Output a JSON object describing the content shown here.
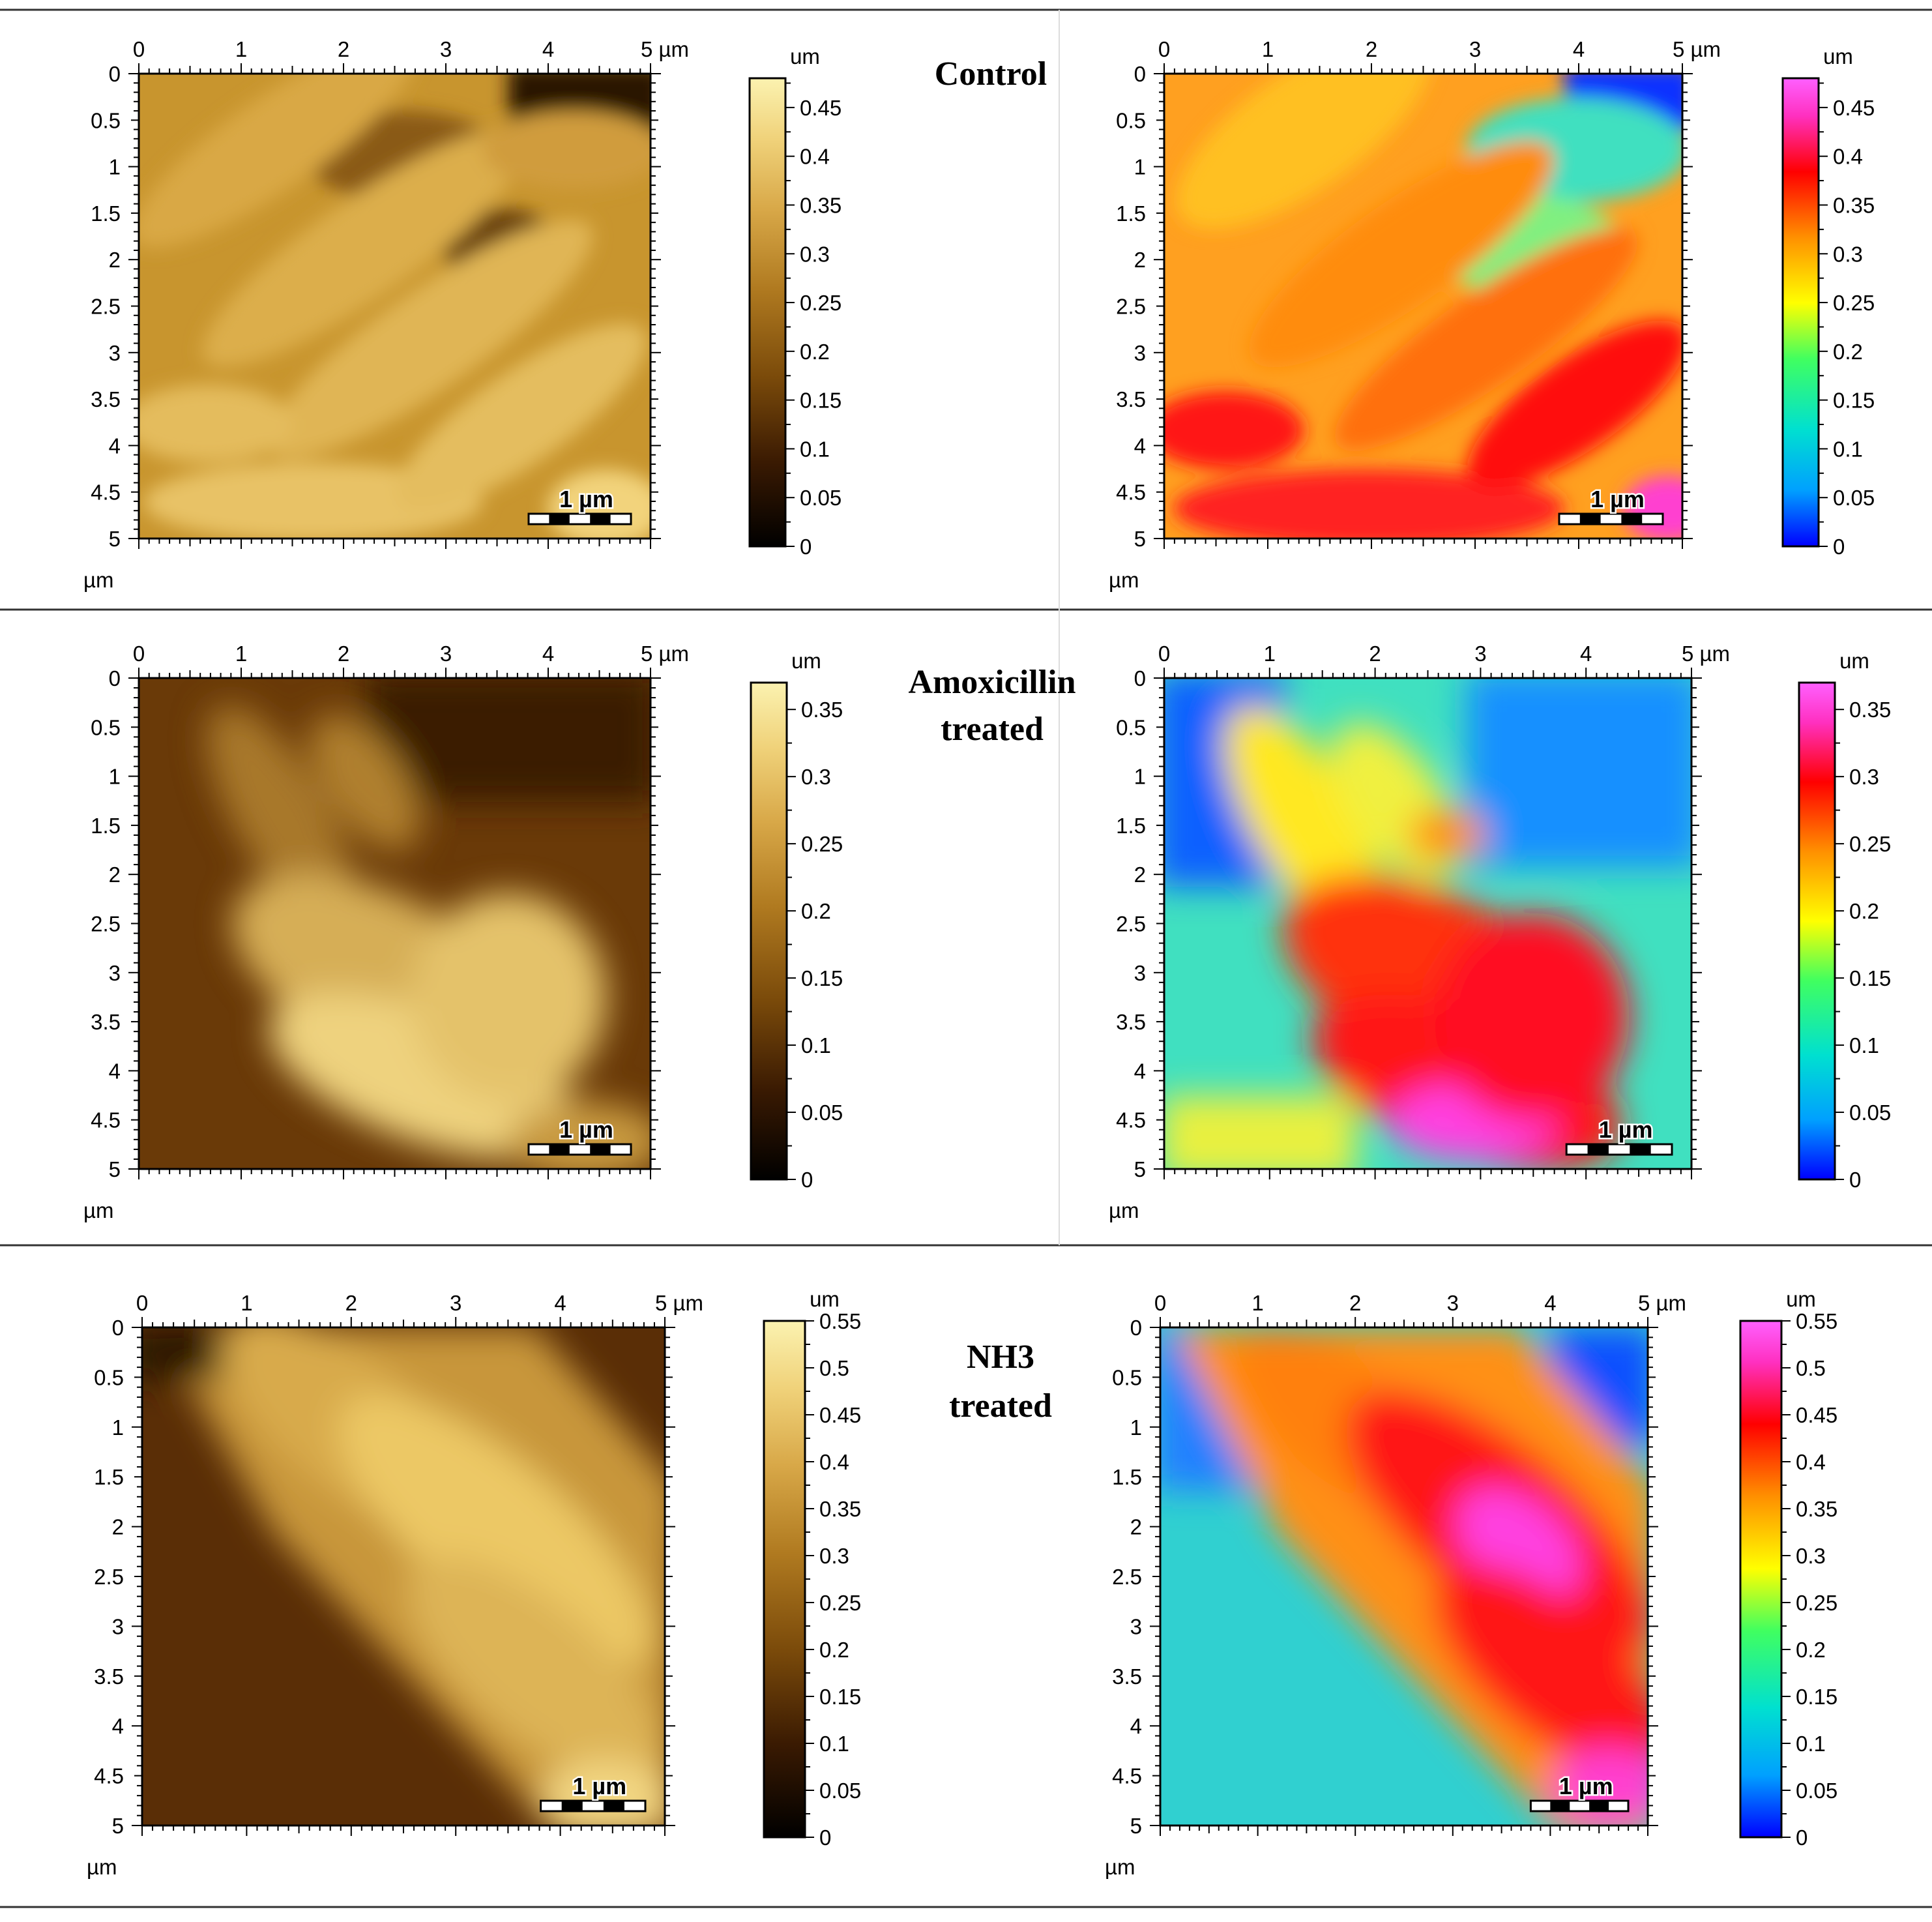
{
  "rows": [
    {
      "label": [
        "Control"
      ],
      "axis_ticks": [
        "0",
        "1",
        "2",
        "3",
        "4"
      ],
      "y_ticks": [
        "0",
        "0.5",
        "1",
        "1.5",
        "2",
        "2.5",
        "3",
        "3.5",
        "4",
        "4.5",
        "5"
      ],
      "x_end_label": "5 µm",
      "axis_unit": "µm",
      "scalebar_label": "1 µm",
      "colorbar_unit": "um",
      "colorbar_max": 0.48,
      "colorbar_ticks": [
        "0",
        "0.05",
        "0.1",
        "0.15",
        "0.2",
        "0.25",
        "0.3",
        "0.35",
        "0.4",
        "0.45"
      ]
    },
    {
      "label": [
        "Amoxicillin",
        "treated"
      ],
      "axis_ticks": [
        "0",
        "1",
        "2",
        "3",
        "4"
      ],
      "y_ticks": [
        "0",
        "0.5",
        "1",
        "1.5",
        "2",
        "2.5",
        "3",
        "3.5",
        "4",
        "4.5",
        "5"
      ],
      "x_end_label": "5 µm",
      "axis_unit": "µm",
      "scalebar_label": "1 µm",
      "colorbar_unit": "um",
      "colorbar_max": 0.37,
      "colorbar_ticks": [
        "0",
        "0.05",
        "0.1",
        "0.15",
        "0.2",
        "0.25",
        "0.3",
        "0.35"
      ]
    },
    {
      "label": [
        "NH3",
        "treated"
      ],
      "axis_ticks": [
        "0",
        "1",
        "2",
        "3",
        "4"
      ],
      "y_ticks": [
        "0",
        "0.5",
        "1",
        "1.5",
        "2",
        "2.5",
        "3",
        "3.5",
        "4",
        "4.5",
        "5"
      ],
      "x_end_label": "5 µm",
      "axis_unit": "µm",
      "scalebar_label": "1 µm",
      "colorbar_unit": "um",
      "colorbar_max": 0.55,
      "colorbar_ticks": [
        "0",
        "0.05",
        "0.1",
        "0.15",
        "0.2",
        "0.25",
        "0.3",
        "0.35",
        "0.4",
        "0.45",
        "0.5",
        "0.55"
      ]
    }
  ],
  "colors": {
    "gold_ramp": [
      "#000000",
      "#3a1a02",
      "#7a4a0a",
      "#b07a20",
      "#d8a848",
      "#f0d27a",
      "#fbf2b0"
    ],
    "rainbow_ramp": [
      "#0000ff",
      "#00a0ff",
      "#00e0d0",
      "#40ff60",
      "#ffff00",
      "#ff9000",
      "#ff0000",
      "#ff30c0",
      "#ff60ff"
    ]
  }
}
